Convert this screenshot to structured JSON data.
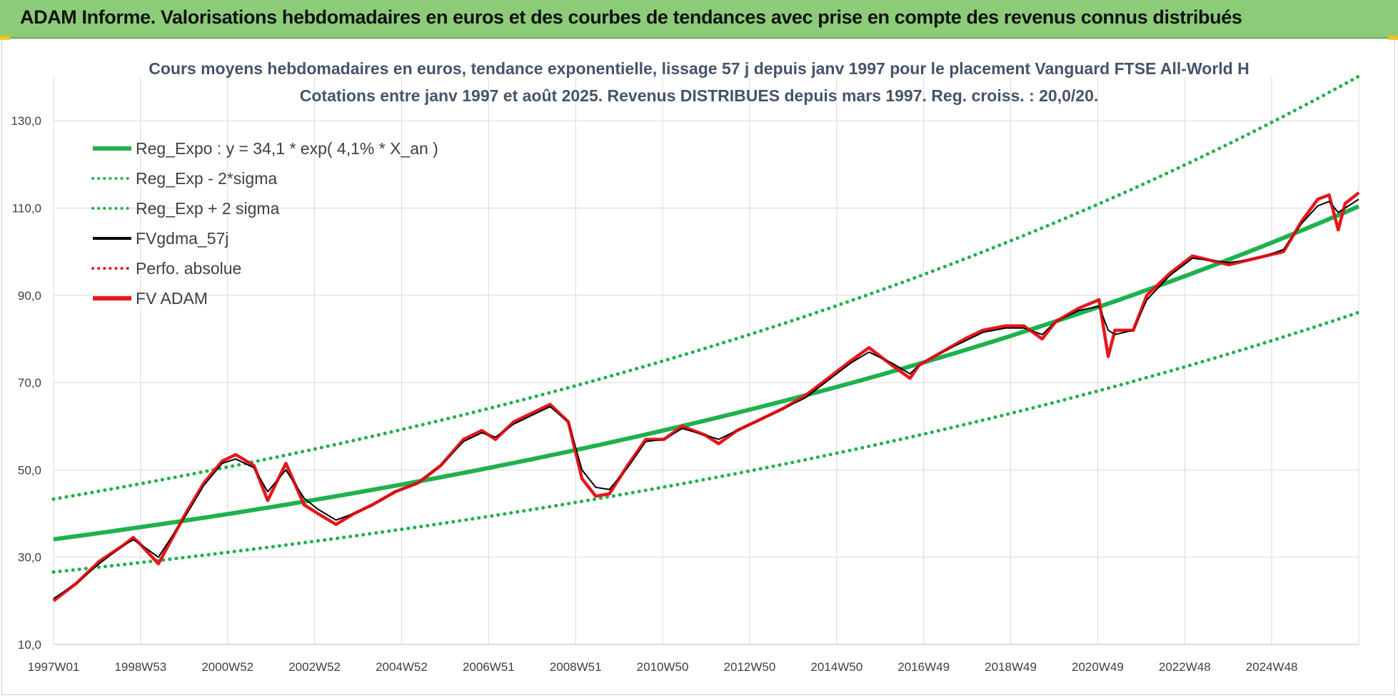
{
  "banner": {
    "title": "ADAM Informe. Valorisations hebdomadaires en euros et des courbes de tendances avec prise en compte des revenus connus distribués",
    "background": "#8ccc78"
  },
  "chart_data": {
    "type": "line",
    "title": "Cours moyens hebdomadaires en euros, tendance exponentielle, lissage 57 j depuis janv 1997 pour le placement Vanguard FTSE All-World H",
    "subtitle": "Cotations entre janv 1997 et août 2025. Revenus DISTRIBUES depuis mars 1997. Reg. croiss. : 20,0/20.",
    "ylim": [
      10,
      140
    ],
    "yticks": [
      "10,0",
      "30,0",
      "50,0",
      "70,0",
      "90,0",
      "110,0",
      "130,0"
    ],
    "ytick_values": [
      10,
      30,
      50,
      70,
      90,
      110,
      130
    ],
    "xlim": [
      1997.0,
      2025.65
    ],
    "xticks": [
      "1997W01",
      "1998W53",
      "2000W52",
      "2002W52",
      "2004W52",
      "2006W51",
      "2008W51",
      "2010W50",
      "2012W50",
      "2014W50",
      "2016W49",
      "2018W49",
      "2020W49",
      "2022W48",
      "2024W48"
    ],
    "grid": true,
    "legend_position": "top-left",
    "regression": {
      "a": 34.1,
      "rate": 0.041,
      "sigma_factor_low": 0.78,
      "sigma_factor_high": 1.27
    },
    "x": [
      1997.0,
      1997.5,
      1998.0,
      1998.5,
      1998.75,
      1998.9,
      1999.3,
      1999.9,
      2000.3,
      2000.7,
      2001.0,
      2001.4,
      2001.7,
      2002.1,
      2002.5,
      2002.8,
      2003.2,
      2003.6,
      2004.0,
      2004.5,
      2005.0,
      2005.5,
      2006.0,
      2006.4,
      2006.7,
      2007.1,
      2007.5,
      2007.9,
      2008.3,
      2008.6,
      2008.9,
      2009.2,
      2009.6,
      2010.0,
      2010.4,
      2010.8,
      2011.3,
      2011.6,
      2012.0,
      2012.5,
      2013.0,
      2013.5,
      2014.0,
      2014.5,
      2014.9,
      2015.4,
      2015.8,
      2016.0,
      2016.5,
      2017.0,
      2017.4,
      2017.9,
      2018.3,
      2018.7,
      2019.0,
      2019.5,
      2019.95,
      2020.15,
      2020.3,
      2020.7,
      2021.0,
      2021.5,
      2022.0,
      2022.4,
      2022.8,
      2023.2,
      2023.6,
      2024.0,
      2024.4,
      2024.75,
      2025.0,
      2025.2,
      2025.35,
      2025.65
    ],
    "series": [
      {
        "name": "FV ADAM",
        "color": "#e8161b",
        "values": [
          20.0,
          24.0,
          29.0,
          32.5,
          34.5,
          33.0,
          28.5,
          40.0,
          47.0,
          52.0,
          53.5,
          51.0,
          43.0,
          51.5,
          42.0,
          40.0,
          37.5,
          40.0,
          42.0,
          45.0,
          47.0,
          51.0,
          57.0,
          59.0,
          57.0,
          61.0,
          63.0,
          65.0,
          61.0,
          48.0,
          44.0,
          44.5,
          51.0,
          57.0,
          57.0,
          60.0,
          58.0,
          56.0,
          59.0,
          61.5,
          64.0,
          67.0,
          71.0,
          75.0,
          78.0,
          74.0,
          71.0,
          74.0,
          77.0,
          80.0,
          82.0,
          83.0,
          83.0,
          80.0,
          84.0,
          87.0,
          89.0,
          76.0,
          82.0,
          82.0,
          90.0,
          95.0,
          99.0,
          98.0,
          97.0,
          98.0,
          99.0,
          100.0,
          107.0,
          112.0,
          113.0,
          105.0,
          111.0,
          113.5
        ]
      },
      {
        "name": "FVgdma_57j",
        "color": "#000000",
        "values": [
          20.5,
          24.0,
          28.5,
          32.5,
          34.0,
          33.0,
          30.0,
          39.5,
          46.5,
          51.5,
          52.5,
          50.5,
          45.0,
          50.0,
          43.5,
          41.0,
          38.5,
          40.0,
          42.0,
          45.0,
          47.0,
          51.0,
          56.5,
          58.5,
          57.5,
          60.5,
          62.5,
          64.5,
          61.0,
          50.0,
          46.0,
          45.5,
          50.5,
          56.5,
          57.0,
          59.5,
          58.0,
          57.0,
          59.0,
          61.5,
          64.0,
          66.5,
          70.5,
          74.5,
          77.0,
          74.5,
          72.0,
          74.0,
          77.0,
          79.5,
          81.5,
          82.5,
          82.5,
          81.0,
          84.0,
          86.5,
          87.5,
          82.0,
          81.0,
          82.0,
          89.0,
          94.5,
          98.5,
          98.0,
          97.5,
          98.0,
          99.0,
          100.5,
          106.5,
          110.5,
          111.5,
          109.0,
          110.0,
          112.0
        ]
      }
    ]
  },
  "legend": [
    {
      "label": "Reg_Expo : y = 34,1 * exp( 4,1% *  X_an )",
      "color": "#1fb14d",
      "style": "solid-thick"
    },
    {
      "label": "Reg_Exp - 2*sigma",
      "color": "#1fb14d",
      "style": "dotted"
    },
    {
      "label": "Reg_Exp + 2 sigma",
      "color": "#1fb14d",
      "style": "dotted"
    },
    {
      "label": "FVgdma_57j",
      "color": "#000000",
      "style": "solid"
    },
    {
      "label": "Perfo. absolue",
      "color": "#e8161b",
      "style": "dotted"
    },
    {
      "label": "FV ADAM",
      "color": "#e8161b",
      "style": "solid-thick"
    }
  ]
}
